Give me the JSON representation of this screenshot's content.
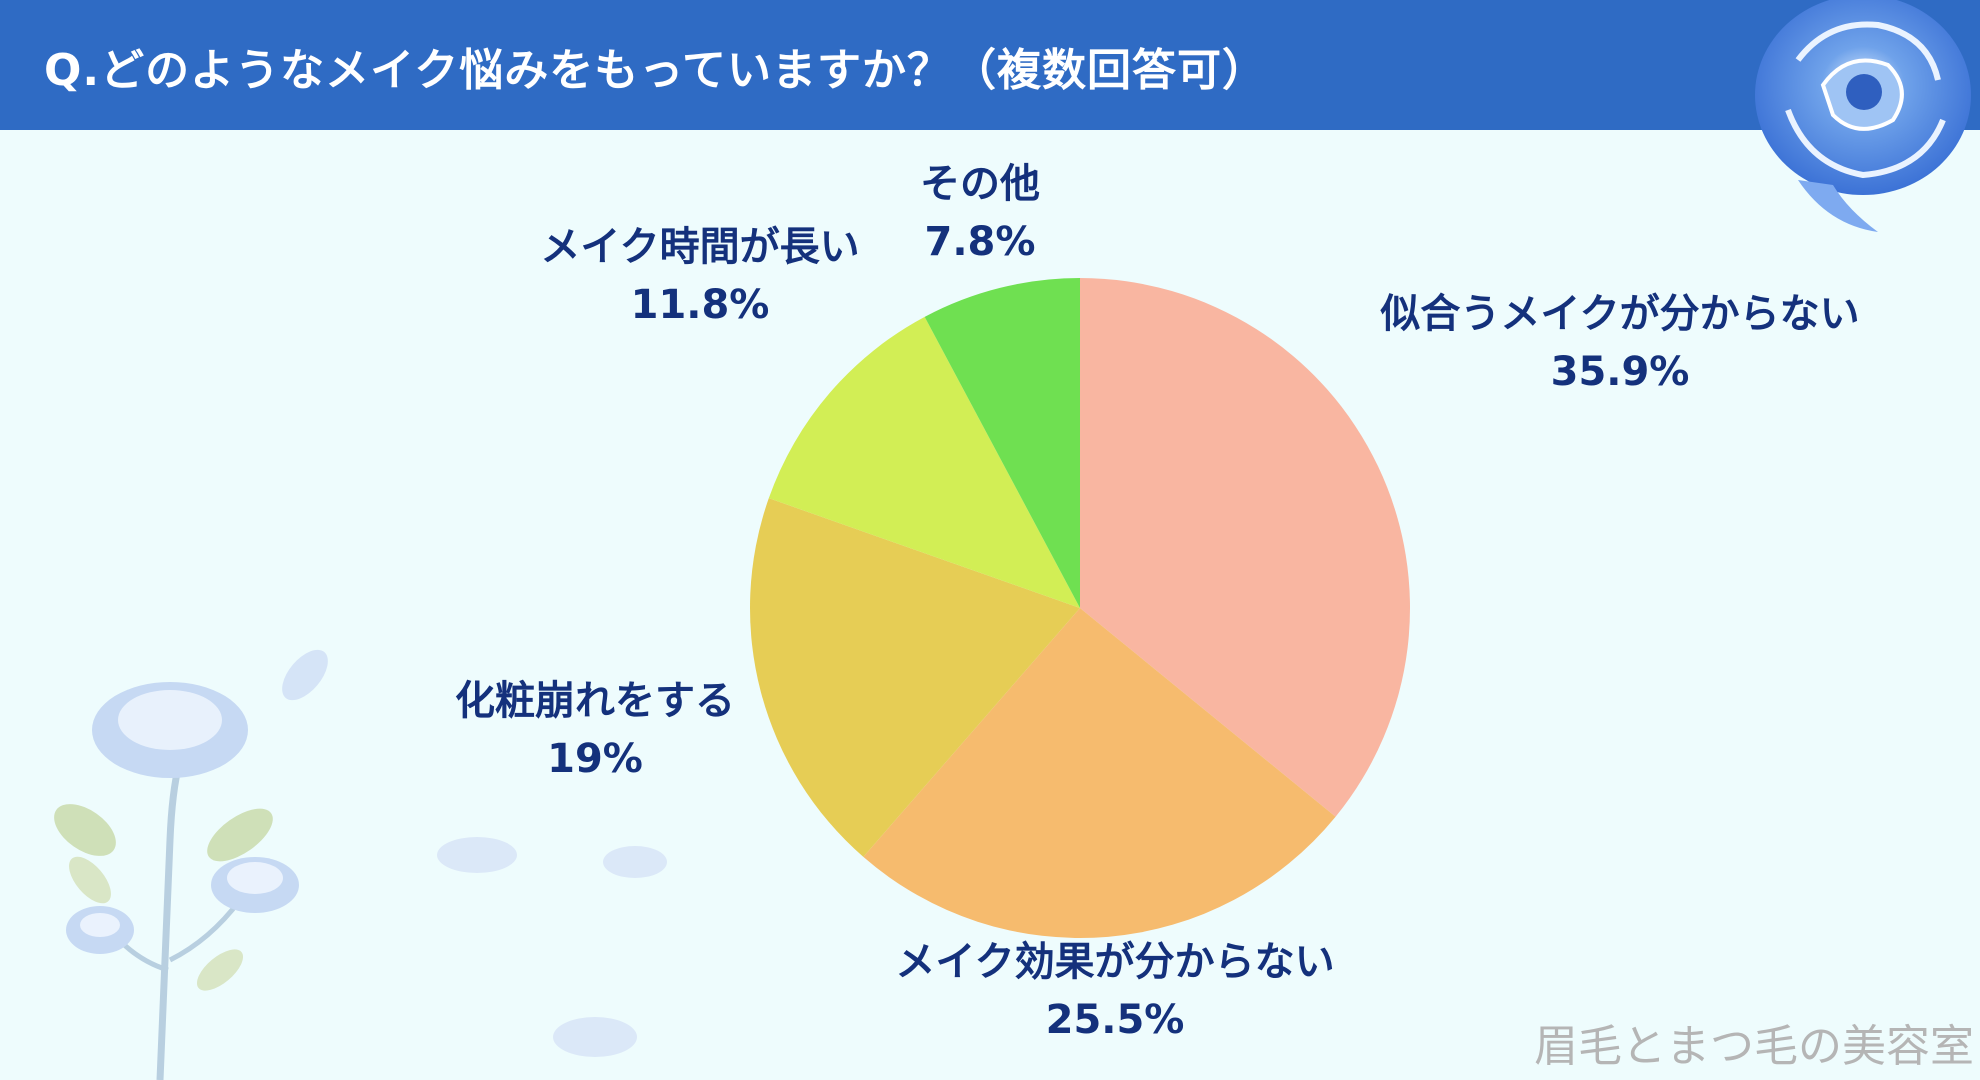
{
  "header": {
    "title": "Q.どのようなメイク悩みをもっていますか？（複数回答可）"
  },
  "watermark": "眉毛とまつ毛の美容室",
  "chart_data": {
    "type": "pie",
    "title": "Q.どのようなメイク悩みをもっていますか？（複数回答可）",
    "slices": [
      {
        "label": "似合うメイクが分からない",
        "value": 35.9,
        "value_label": "35.9%",
        "color": "#f9b6a1"
      },
      {
        "label": "メイク効果が分からない",
        "value": 25.5,
        "value_label": "25.5%",
        "color": "#f6bb6e"
      },
      {
        "label": "化粧崩れをする",
        "value": 19,
        "value_label": "19%",
        "color": "#e6cd55"
      },
      {
        "label": "メイク時間が長い",
        "value": 11.8,
        "value_label": "11.8%",
        "color": "#d2ee55"
      },
      {
        "label": "その他",
        "value": 7.8,
        "value_label": "7.8%",
        "color": "#6fe051"
      }
    ],
    "start_angle": "12 o'clock",
    "direction": "clockwise",
    "legend": "none"
  },
  "decorations": {
    "corner_rose_icon": "blue-rose-icon",
    "bottom_left_icon": "blue-rose-branch-icon",
    "petal_icon": "petal-icon"
  }
}
